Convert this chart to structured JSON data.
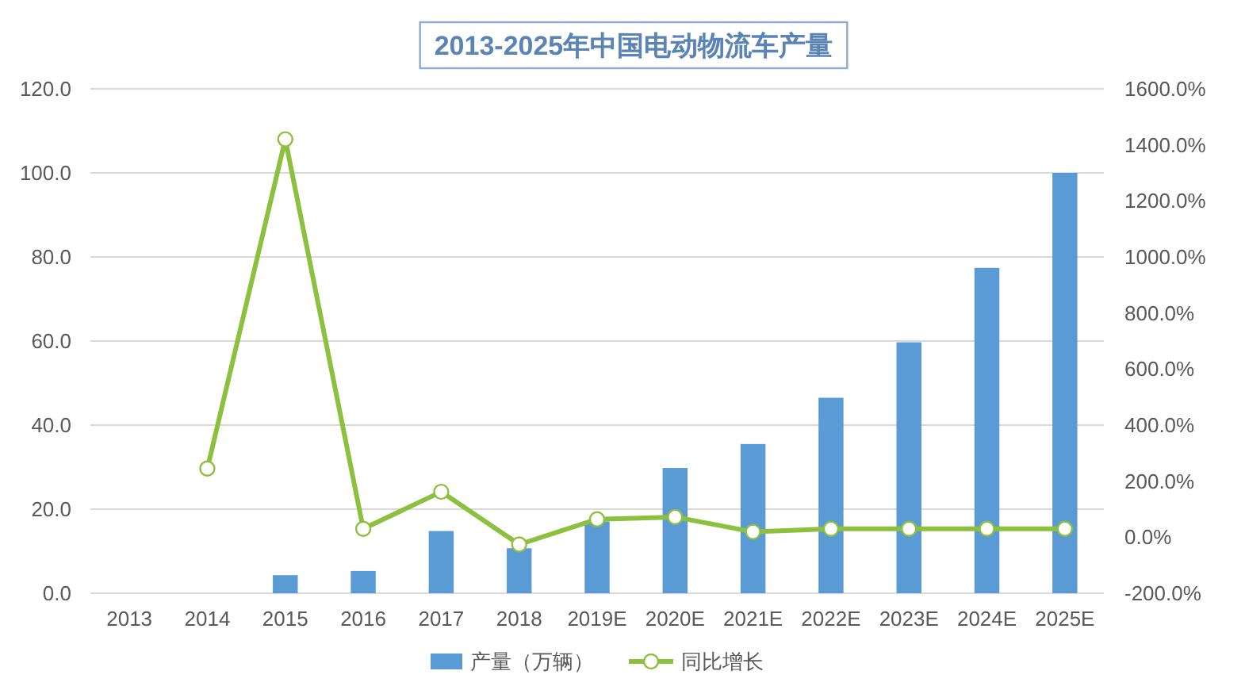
{
  "chart_data": {
    "type": "bar",
    "title": "2013-2025年中国电动物流车产量",
    "categories": [
      "2013",
      "2014",
      "2015",
      "2016",
      "2017",
      "2018",
      "2019E",
      "2020E",
      "2021E",
      "2022E",
      "2023E",
      "2024E",
      "2025E"
    ],
    "series": [
      {
        "name": "产量（万辆）",
        "color": "#5b9bd5",
        "values": [
          0,
          0,
          4.3,
          5.3,
          14.8,
          10.7,
          17.1,
          29.8,
          35.5,
          46.5,
          59.7,
          77.4,
          100.0
        ]
      },
      {
        "name": "同比增长",
        "type": "line",
        "axis": "y2",
        "color": "#8dc03f",
        "marker": "circle",
        "values": [
          null,
          245,
          1420,
          30,
          162,
          -26,
          64,
          72,
          19,
          30,
          30,
          30,
          30
        ]
      }
    ],
    "ylim": [
      0,
      120
    ],
    "yticks": [
      {
        "value": 0,
        "label": "0.0"
      },
      {
        "value": 20,
        "label": "20.0"
      },
      {
        "value": 40,
        "label": "40.0"
      },
      {
        "value": 60,
        "label": "60.0"
      },
      {
        "value": 80,
        "label": "80.0"
      },
      {
        "value": 100,
        "label": "100.0"
      },
      {
        "value": 120,
        "label": "120.0"
      }
    ],
    "y2lim": [
      -200,
      1600
    ],
    "y2ticks": [
      {
        "value": -200,
        "label": "-200.0%"
      },
      {
        "value": 0,
        "label": "0.0%"
      },
      {
        "value": 200,
        "label": "200.0%"
      },
      {
        "value": 400,
        "label": "400.0%"
      },
      {
        "value": 600,
        "label": "600.0%"
      },
      {
        "value": 800,
        "label": "800.0%"
      },
      {
        "value": 1000,
        "label": "1000.0%"
      },
      {
        "value": 1200,
        "label": "1200.0%"
      },
      {
        "value": 1400,
        "label": "1400.0%"
      },
      {
        "value": 1600,
        "label": "1600.0%"
      }
    ],
    "grid": "y",
    "legend": "bottom"
  }
}
